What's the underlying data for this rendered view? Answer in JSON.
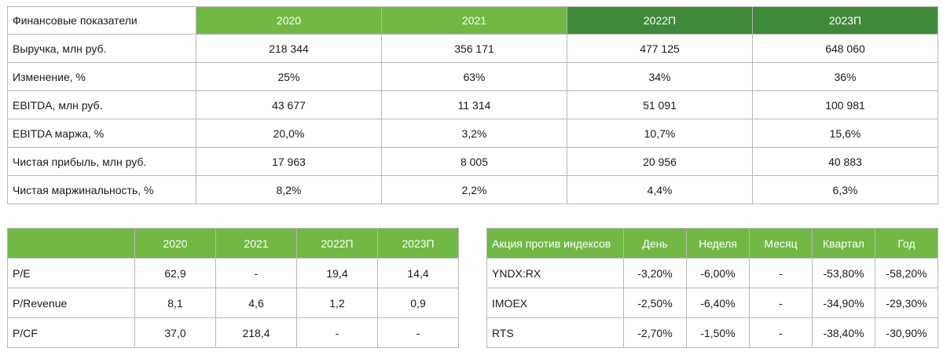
{
  "financials": {
    "header": [
      "Финансовые показатели",
      "2020",
      "2021",
      "2022П",
      "2023П"
    ],
    "rows": [
      [
        "Выручка, млн руб.",
        "218 344",
        "356 171",
        "477 125",
        "648 060"
      ],
      [
        "Изменение, %",
        "25%",
        "63%",
        "34%",
        "36%"
      ],
      [
        "EBITDA, млн руб.",
        "43 677",
        "11 314",
        "51 091",
        "100 981"
      ],
      [
        "EBITDA маржа, %",
        "20,0%",
        "3,2%",
        "10,7%",
        "15,6%"
      ],
      [
        "Чистая прибыль, млн руб.",
        "17 963",
        "8 005",
        "20 956",
        "40 883"
      ],
      [
        "Чистая маржинальность, %",
        "8,2%",
        "2,2%",
        "4,4%",
        "6,3%"
      ]
    ]
  },
  "multiples": {
    "header": [
      "",
      "2020",
      "2021",
      "2022П",
      "2023П"
    ],
    "rows": [
      [
        "P/E",
        "62,9",
        "-",
        "19,4",
        "14,4"
      ],
      [
        "P/Revenue",
        "8,1",
        "4,6",
        "1,2",
        "0,9"
      ],
      [
        "P/CF",
        "37,0",
        "218,4",
        "-",
        "-"
      ]
    ]
  },
  "indices": {
    "header": [
      "Акция против индексов",
      "День",
      "Неделя",
      "Месяц",
      "Квартал",
      "Год"
    ],
    "rows": [
      [
        "YNDX:RX",
        "-3,20%",
        "-6,00%",
        "-",
        "-53,80%",
        "-58,20%"
      ],
      [
        "IMOEX",
        "-2,50%",
        "-6,40%",
        "-",
        "-34,90%",
        "-29,30%"
      ],
      [
        "RTS",
        "-2,70%",
        "-1,50%",
        "-",
        "-38,40%",
        "-30,90%"
      ]
    ]
  },
  "colors": {
    "header_light": "#71b944",
    "header_dark": "#3f8a38",
    "border": "#b7b7b7"
  }
}
